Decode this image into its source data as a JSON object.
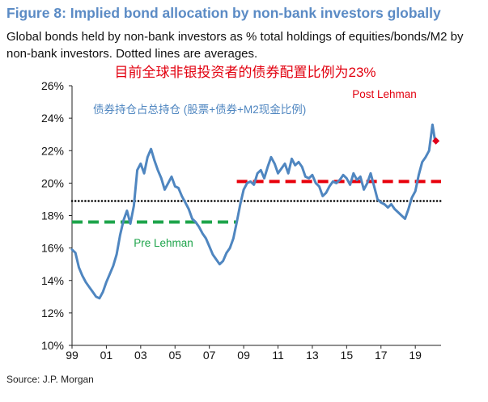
{
  "figure": {
    "title": "Figure 8: Implied bond allocation by non-bank investors globally",
    "subtitle": "Global bonds held by non-bank investors as % total holdings of equities/bonds/M2 by non-bank investors. Dotted lines are averages.",
    "source": "Source: J.P. Morgan"
  },
  "chart_data": {
    "type": "line",
    "headline": "目前全球非银投资者的债券配置比例为23%",
    "series_label": "债券持仓占总持仓 (股票+债券+M2现金比例)",
    "x_tick_labels": [
      "99",
      "01",
      "03",
      "05",
      "07",
      "09",
      "11",
      "13",
      "15",
      "17",
      "19"
    ],
    "x_tick_years": [
      1999,
      2001,
      2003,
      2005,
      2007,
      2009,
      2011,
      2013,
      2015,
      2017,
      2019
    ],
    "y_tick_labels": [
      "10%",
      "12%",
      "14%",
      "16%",
      "18%",
      "20%",
      "22%",
      "24%",
      "26%"
    ],
    "xlim": [
      1999,
      2020.5
    ],
    "ylim": [
      10,
      26
    ],
    "series": [
      {
        "color": "#4f86c0",
        "points": [
          [
            1999.0,
            15.9
          ],
          [
            1999.2,
            15.7
          ],
          [
            1999.4,
            14.8
          ],
          [
            1999.6,
            14.3
          ],
          [
            1999.8,
            13.9
          ],
          [
            2000.0,
            13.6
          ],
          [
            2000.2,
            13.3
          ],
          [
            2000.4,
            13.0
          ],
          [
            2000.6,
            12.9
          ],
          [
            2000.8,
            13.3
          ],
          [
            2001.0,
            13.9
          ],
          [
            2001.2,
            14.4
          ],
          [
            2001.4,
            14.9
          ],
          [
            2001.6,
            15.6
          ],
          [
            2001.8,
            16.8
          ],
          [
            2002.0,
            17.7
          ],
          [
            2002.2,
            18.3
          ],
          [
            2002.4,
            17.5
          ],
          [
            2002.6,
            18.6
          ],
          [
            2002.8,
            20.8
          ],
          [
            2003.0,
            21.2
          ],
          [
            2003.2,
            20.6
          ],
          [
            2003.4,
            21.6
          ],
          [
            2003.6,
            22.1
          ],
          [
            2003.8,
            21.4
          ],
          [
            2004.0,
            20.8
          ],
          [
            2004.2,
            20.3
          ],
          [
            2004.4,
            19.6
          ],
          [
            2004.6,
            20.0
          ],
          [
            2004.8,
            20.4
          ],
          [
            2005.0,
            19.8
          ],
          [
            2005.2,
            19.7
          ],
          [
            2005.4,
            19.2
          ],
          [
            2005.6,
            18.8
          ],
          [
            2005.8,
            18.4
          ],
          [
            2006.0,
            17.8
          ],
          [
            2006.2,
            17.6
          ],
          [
            2006.4,
            17.3
          ],
          [
            2006.6,
            16.9
          ],
          [
            2006.8,
            16.6
          ],
          [
            2007.0,
            16.1
          ],
          [
            2007.2,
            15.6
          ],
          [
            2007.4,
            15.3
          ],
          [
            2007.6,
            15.0
          ],
          [
            2007.8,
            15.2
          ],
          [
            2008.0,
            15.7
          ],
          [
            2008.2,
            16.0
          ],
          [
            2008.4,
            16.6
          ],
          [
            2008.6,
            17.6
          ],
          [
            2008.8,
            18.7
          ],
          [
            2009.0,
            19.6
          ],
          [
            2009.2,
            20.0
          ],
          [
            2009.4,
            20.1
          ],
          [
            2009.6,
            19.9
          ],
          [
            2009.8,
            20.6
          ],
          [
            2010.0,
            20.8
          ],
          [
            2010.2,
            20.3
          ],
          [
            2010.4,
            21.0
          ],
          [
            2010.6,
            21.6
          ],
          [
            2010.8,
            21.2
          ],
          [
            2011.0,
            20.6
          ],
          [
            2011.2,
            20.9
          ],
          [
            2011.4,
            21.2
          ],
          [
            2011.6,
            20.6
          ],
          [
            2011.8,
            21.5
          ],
          [
            2012.0,
            21.1
          ],
          [
            2012.2,
            21.3
          ],
          [
            2012.4,
            21.0
          ],
          [
            2012.6,
            20.4
          ],
          [
            2012.8,
            20.3
          ],
          [
            2013.0,
            20.5
          ],
          [
            2013.2,
            20.0
          ],
          [
            2013.4,
            19.8
          ],
          [
            2013.6,
            19.2
          ],
          [
            2013.8,
            19.4
          ],
          [
            2014.0,
            19.8
          ],
          [
            2014.2,
            20.1
          ],
          [
            2014.4,
            20.0
          ],
          [
            2014.6,
            20.2
          ],
          [
            2014.8,
            20.5
          ],
          [
            2015.0,
            20.3
          ],
          [
            2015.2,
            19.9
          ],
          [
            2015.4,
            20.6
          ],
          [
            2015.6,
            20.2
          ],
          [
            2015.8,
            20.4
          ],
          [
            2016.0,
            19.6
          ],
          [
            2016.2,
            20.0
          ],
          [
            2016.4,
            20.6
          ],
          [
            2016.6,
            19.8
          ],
          [
            2016.8,
            19.0
          ],
          [
            2017.0,
            18.8
          ],
          [
            2017.2,
            18.7
          ],
          [
            2017.4,
            18.5
          ],
          [
            2017.6,
            18.7
          ],
          [
            2017.8,
            18.4
          ],
          [
            2018.0,
            18.2
          ],
          [
            2018.2,
            18.0
          ],
          [
            2018.4,
            17.8
          ],
          [
            2018.6,
            18.4
          ],
          [
            2018.8,
            19.1
          ],
          [
            2019.0,
            19.5
          ],
          [
            2019.2,
            20.5
          ],
          [
            2019.4,
            21.3
          ],
          [
            2019.6,
            21.6
          ],
          [
            2019.8,
            22.0
          ],
          [
            2020.0,
            23.6
          ],
          [
            2020.15,
            22.6
          ]
        ]
      }
    ],
    "averages": [
      {
        "color": "#000000",
        "style": "dotted",
        "from": 1999.0,
        "to": 2020.5,
        "value": 18.9
      },
      {
        "label": "Pre Lehman",
        "color": "#1ea44b",
        "style": "dashed",
        "from": 1999.0,
        "to": 2008.6,
        "value": 17.6
      },
      {
        "label": "Post Lehman",
        "color": "#e8000b",
        "style": "dashed",
        "from": 2008.6,
        "to": 2020.5,
        "value": 20.1
      }
    ],
    "marker": {
      "x": 2020.2,
      "y": 22.6,
      "color": "#e0001b",
      "shape": "diamond"
    }
  }
}
